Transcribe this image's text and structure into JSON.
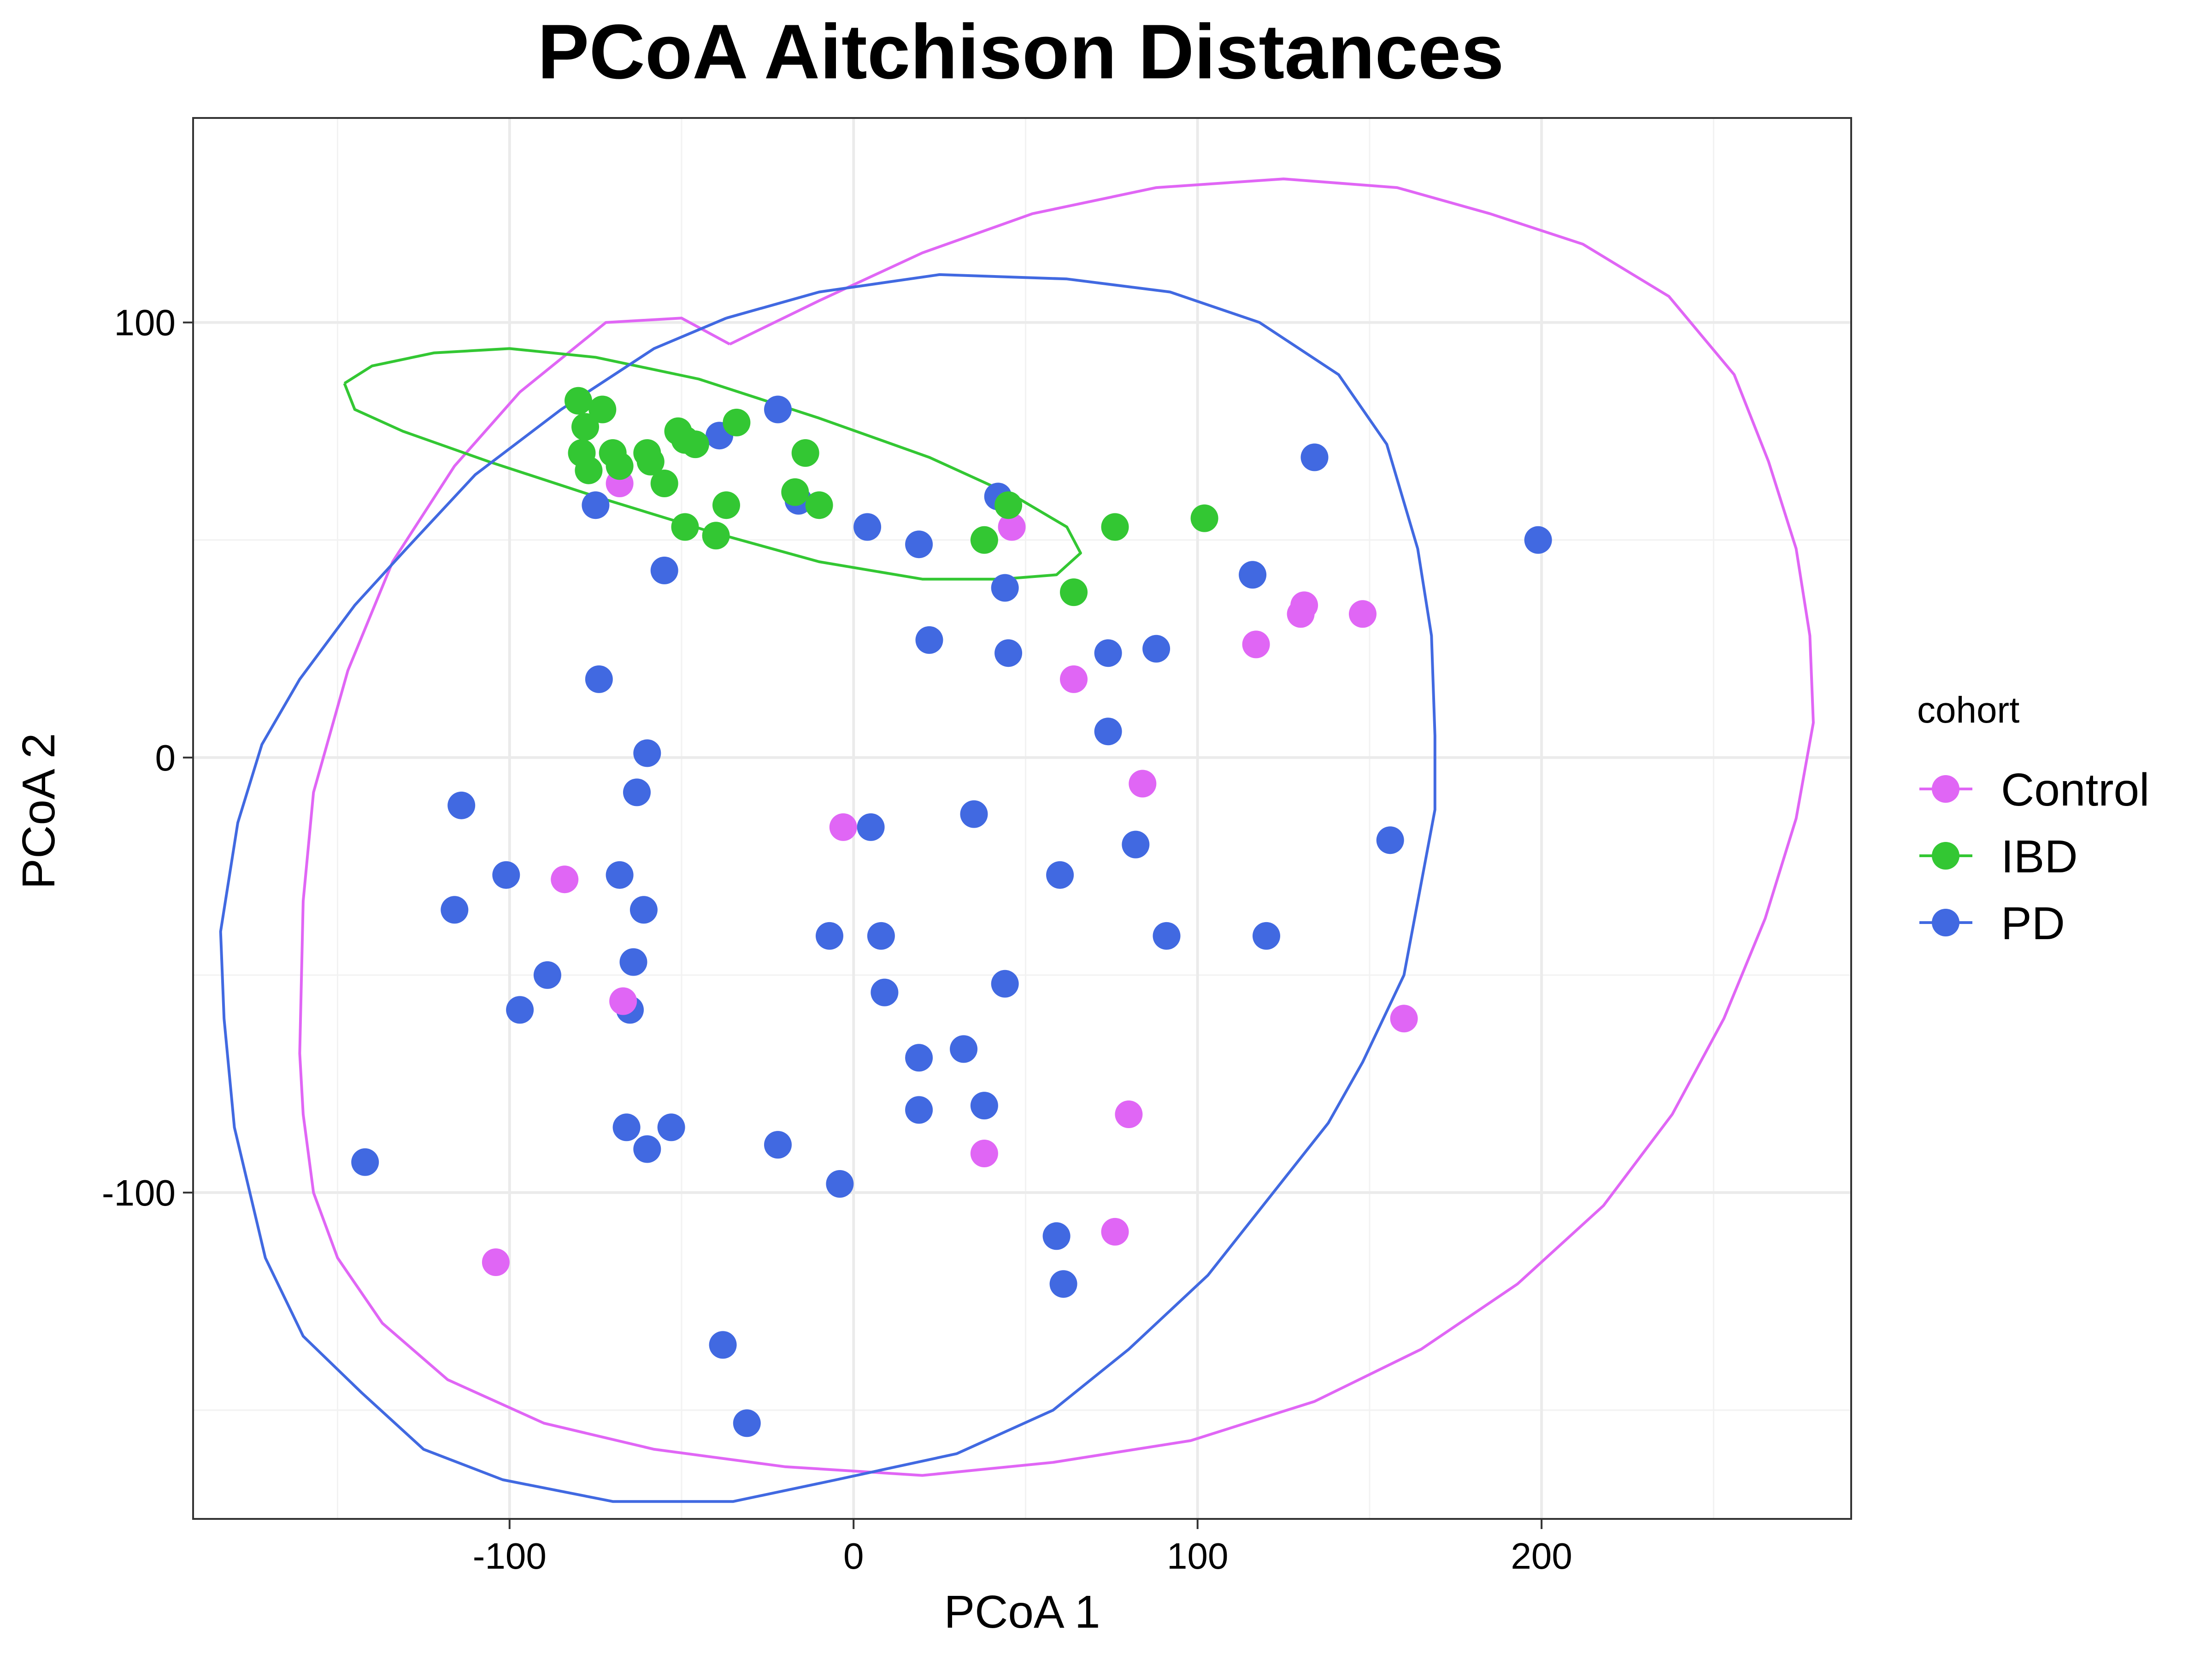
{
  "chart_data": {
    "type": "scatter",
    "title": "PCoA Aitchison Distances",
    "xlabel": "PCoA 1",
    "ylabel": "PCoA 2",
    "xlim": [
      -192,
      290
    ],
    "ylim": [
      -175,
      147
    ],
    "x_ticks": [
      -100,
      0,
      100,
      200
    ],
    "y_ticks": [
      -100,
      0,
      100
    ],
    "x_tick_labels": [
      "-100",
      "0",
      "100",
      "200"
    ],
    "y_tick_labels": [
      "-100",
      "0",
      "100"
    ],
    "grid": true,
    "legend": {
      "title": "cohort",
      "position": "right",
      "entries": [
        "Control",
        "IBD",
        "PD"
      ]
    },
    "series": [
      {
        "name": "Control",
        "color": "#E066F5",
        "points": [
          [
            -68,
            63
          ],
          [
            46,
            53
          ],
          [
            117,
            26
          ],
          [
            130,
            33
          ],
          [
            131,
            35
          ],
          [
            148,
            33
          ],
          [
            64,
            18
          ],
          [
            84,
            -6
          ],
          [
            -3,
            -16
          ],
          [
            -84,
            -28
          ],
          [
            -67,
            -56
          ],
          [
            160,
            -60
          ],
          [
            80,
            -82
          ],
          [
            38,
            -91
          ],
          [
            76,
            -109
          ],
          [
            -104,
            -116
          ]
        ],
        "ellipse": [
          [
            -36,
            95
          ],
          [
            -10,
            105
          ],
          [
            20,
            116
          ],
          [
            52,
            125
          ],
          [
            88,
            131
          ],
          [
            125,
            133
          ],
          [
            158,
            131
          ],
          [
            185,
            125
          ],
          [
            212,
            118
          ],
          [
            237,
            106
          ],
          [
            256,
            88
          ],
          [
            266,
            68
          ],
          [
            274,
            48
          ],
          [
            278,
            28
          ],
          [
            279,
            8
          ],
          [
            274,
            -14
          ],
          [
            265,
            -37
          ],
          [
            253,
            -60
          ],
          [
            238,
            -82
          ],
          [
            218,
            -103
          ],
          [
            193,
            -121
          ],
          [
            165,
            -136
          ],
          [
            134,
            -148
          ],
          [
            98,
            -157
          ],
          [
            58,
            -162
          ],
          [
            20,
            -165
          ],
          [
            -20,
            -163
          ],
          [
            -58,
            -159
          ],
          [
            -90,
            -153
          ],
          [
            -118,
            -143
          ],
          [
            -137,
            -130
          ],
          [
            -150,
            -115
          ],
          [
            -157,
            -100
          ],
          [
            -160,
            -82
          ],
          [
            -161,
            -68
          ],
          [
            -160,
            -33
          ],
          [
            -157,
            -8
          ],
          [
            -147,
            20
          ],
          [
            -134,
            45
          ],
          [
            -116,
            67
          ],
          [
            -97,
            84
          ],
          [
            -72,
            100
          ],
          [
            -50,
            101
          ],
          [
            -36,
            95
          ]
        ]
      },
      {
        "name": "IBD",
        "color": "#33C733",
        "points": [
          [
            -80,
            82
          ],
          [
            -78,
            76
          ],
          [
            -73,
            80
          ],
          [
            -79,
            70
          ],
          [
            -77,
            66
          ],
          [
            -70,
            70
          ],
          [
            -68,
            67
          ],
          [
            -60,
            70
          ],
          [
            -59,
            68
          ],
          [
            -55,
            63
          ],
          [
            -51,
            75
          ],
          [
            -49,
            73
          ],
          [
            -46,
            72
          ],
          [
            -34,
            77
          ],
          [
            -14,
            70
          ],
          [
            -17,
            61
          ],
          [
            -10,
            58
          ],
          [
            -37,
            58
          ],
          [
            -49,
            53
          ],
          [
            38,
            50
          ],
          [
            45,
            58
          ],
          [
            76,
            53
          ],
          [
            102,
            55
          ],
          [
            64,
            38
          ],
          [
            -40,
            51
          ]
        ],
        "ellipse": [
          [
            -148,
            86
          ],
          [
            -140,
            90
          ],
          [
            -122,
            93
          ],
          [
            -100,
            94
          ],
          [
            -75,
            92
          ],
          [
            -45,
            87
          ],
          [
            -10,
            78
          ],
          [
            22,
            69
          ],
          [
            47,
            60
          ],
          [
            62,
            53
          ],
          [
            66,
            47
          ],
          [
            59,
            42
          ],
          [
            43,
            41
          ],
          [
            20,
            41
          ],
          [
            -10,
            45
          ],
          [
            -42,
            52
          ],
          [
            -75,
            60
          ],
          [
            -106,
            68
          ],
          [
            -131,
            75
          ],
          [
            -145,
            80
          ],
          [
            -148,
            86
          ]
        ]
      },
      {
        "name": "PD",
        "color": "#4169E1",
        "points": [
          [
            -22,
            80
          ],
          [
            -39,
            74
          ],
          [
            -75,
            58
          ],
          [
            -16,
            59
          ],
          [
            42,
            60
          ],
          [
            4,
            53
          ],
          [
            19,
            49
          ],
          [
            -55,
            43
          ],
          [
            44,
            39
          ],
          [
            22,
            27
          ],
          [
            45,
            24
          ],
          [
            74,
            24
          ],
          [
            88,
            25
          ],
          [
            116,
            42
          ],
          [
            134,
            69
          ],
          [
            199,
            50
          ],
          [
            -74,
            18
          ],
          [
            74,
            6
          ],
          [
            -60,
            1
          ],
          [
            -63,
            -8
          ],
          [
            -114,
            -11
          ],
          [
            35,
            -13
          ],
          [
            5,
            -16
          ],
          [
            156,
            -19
          ],
          [
            -101,
            -27
          ],
          [
            -68,
            -27
          ],
          [
            60,
            -27
          ],
          [
            82,
            -20
          ],
          [
            -61,
            -35
          ],
          [
            -116,
            -35
          ],
          [
            -7,
            -41
          ],
          [
            8,
            -41
          ],
          [
            91,
            -41
          ],
          [
            120,
            -41
          ],
          [
            -64,
            -47
          ],
          [
            -89,
            -50
          ],
          [
            -97,
            -58
          ],
          [
            -65,
            -58
          ],
          [
            9,
            -54
          ],
          [
            44,
            -52
          ],
          [
            19,
            -69
          ],
          [
            32,
            -67
          ],
          [
            38,
            -80
          ],
          [
            19,
            -81
          ],
          [
            -66,
            -85
          ],
          [
            -53,
            -85
          ],
          [
            -60,
            -90
          ],
          [
            -22,
            -89
          ],
          [
            -4,
            -98
          ],
          [
            -142,
            -93
          ],
          [
            59,
            -110
          ],
          [
            61,
            -121
          ],
          [
            -38,
            -135
          ],
          [
            -31,
            -153
          ]
        ],
        "ellipse": [
          [
            -37,
            101
          ],
          [
            -10,
            107
          ],
          [
            25,
            111
          ],
          [
            62,
            110
          ],
          [
            92,
            107
          ],
          [
            118,
            100
          ],
          [
            141,
            88
          ],
          [
            155,
            72
          ],
          [
            164,
            48
          ],
          [
            168,
            28
          ],
          [
            169,
            5
          ],
          [
            169,
            -12
          ],
          [
            160,
            -50
          ],
          [
            148,
            -70
          ],
          [
            138,
            -84
          ],
          [
            123,
            -99
          ],
          [
            103,
            -119
          ],
          [
            80,
            -136
          ],
          [
            58,
            -150
          ],
          [
            30,
            -160
          ],
          [
            -5,
            -166
          ],
          [
            -35,
            -171
          ],
          [
            -70,
            -171
          ],
          [
            -102,
            -166
          ],
          [
            -125,
            -159
          ],
          [
            -143,
            -146
          ],
          [
            -160,
            -133
          ],
          [
            -171,
            -115
          ],
          [
            -180,
            -85
          ],
          [
            -183,
            -60
          ],
          [
            -184,
            -40
          ],
          [
            -179,
            -15
          ],
          [
            -172,
            3
          ],
          [
            -161,
            18
          ],
          [
            -145,
            35
          ],
          [
            -130,
            48
          ],
          [
            -110,
            65
          ],
          [
            -85,
            80
          ],
          [
            -58,
            94
          ],
          [
            -37,
            101
          ]
        ]
      }
    ]
  }
}
